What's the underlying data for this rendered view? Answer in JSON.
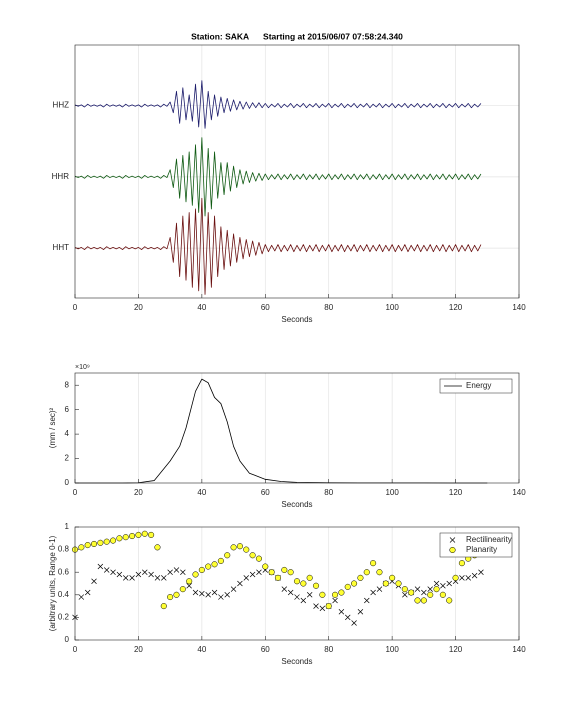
{
  "chart_data": [
    {
      "type": "line",
      "title": "Station: SAKA      Starting at 2015/06/07 07:58:24.340",
      "xlabel": "Seconds",
      "x": [
        0,
        1,
        2,
        3,
        4,
        5,
        6,
        7,
        8,
        9,
        10,
        11,
        12,
        13,
        14,
        15,
        16,
        17,
        18,
        19,
        20,
        21,
        22,
        23,
        24,
        25,
        26,
        27,
        28,
        29,
        30,
        31,
        32,
        33,
        34,
        35,
        36,
        37,
        38,
        39,
        40,
        41,
        42,
        43,
        44,
        45,
        46,
        47,
        48,
        49,
        50,
        51,
        52,
        53,
        54,
        55,
        56,
        57,
        58,
        59,
        60,
        61,
        62,
        63,
        64,
        65,
        66,
        67,
        68,
        69,
        70,
        71,
        72,
        73,
        74,
        75,
        76,
        77,
        78,
        79,
        80,
        81,
        82,
        83,
        84,
        85,
        86,
        87,
        88,
        89,
        90,
        91,
        92,
        93,
        94,
        95,
        96,
        97,
        98,
        99,
        100,
        101,
        102,
        103,
        104,
        105,
        106,
        107,
        108,
        109,
        110,
        111,
        112,
        113,
        114,
        115,
        116,
        117,
        118,
        119,
        120,
        121,
        122,
        123,
        124,
        125,
        126,
        127,
        128
      ],
      "series": [
        {
          "color": "#1c1c6b",
          "values": [
            3.01,
            2.99,
            3.01,
            2.98,
            3.02,
            2.99,
            3.01,
            2.99,
            3.01,
            2.98,
            3.02,
            2.99,
            3.01,
            2.99,
            3.01,
            2.98,
            3.02,
            2.99,
            3.01,
            2.99,
            3.01,
            2.98,
            3.02,
            2.99,
            3.01,
            2.99,
            3.01,
            2.98,
            3.02,
            2.99,
            3.05,
            2.9,
            3.2,
            2.75,
            3.25,
            2.8,
            3.15,
            2.78,
            3.3,
            2.7,
            3.35,
            2.68,
            3.2,
            2.8,
            3.15,
            2.85,
            3.12,
            2.9,
            3.1,
            2.92,
            3.08,
            2.94,
            3.06,
            2.95,
            3.05,
            2.96,
            3.04,
            2.97,
            3.04,
            2.97,
            3.03,
            2.97,
            3.02,
            2.98,
            3.03,
            2.97,
            3.02,
            2.98,
            3.03,
            2.97,
            3.02,
            2.98,
            3.03,
            2.97,
            3.02,
            2.98,
            3.03,
            2.97,
            3.02,
            2.98,
            3.03,
            2.97,
            3.02,
            2.98,
            3.03,
            2.97,
            3.02,
            2.98,
            3.03,
            2.97,
            3.02,
            2.98,
            3.03,
            2.97,
            3.02,
            2.98,
            3.03,
            2.97,
            3.02,
            2.98,
            3.03,
            2.97,
            3.02,
            2.98,
            3.03,
            2.97,
            3.02,
            2.98,
            3.03,
            2.97,
            3.02,
            2.98,
            3.03,
            2.97,
            3.02,
            2.98,
            3.03,
            2.97,
            3.02,
            2.98,
            3.03,
            2.97,
            3.02,
            2.98,
            3.03,
            2.97,
            3.02,
            2.98,
            3.03
          ]
        },
        {
          "color": "#0f5a12",
          "values": [
            2.01,
            1.99,
            2.01,
            1.98,
            2.02,
            1.99,
            2.01,
            1.99,
            2.01,
            1.98,
            2.02,
            1.99,
            2.01,
            1.99,
            2.01,
            1.98,
            2.02,
            1.99,
            2.01,
            1.99,
            2.01,
            1.98,
            2.02,
            1.99,
            2.01,
            1.99,
            2.01,
            1.98,
            2.02,
            1.99,
            2.1,
            1.85,
            2.25,
            1.7,
            2.3,
            1.65,
            2.35,
            1.6,
            2.45,
            1.5,
            2.55,
            1.45,
            2.4,
            1.55,
            2.35,
            1.7,
            2.2,
            1.75,
            2.2,
            1.8,
            2.15,
            1.85,
            2.1,
            1.9,
            2.08,
            1.92,
            2.06,
            1.94,
            2.05,
            1.95,
            2.04,
            1.96,
            2.03,
            1.97,
            2.04,
            1.96,
            2.03,
            1.97,
            2.04,
            1.96,
            2.03,
            1.97,
            2.04,
            1.96,
            2.03,
            1.97,
            2.04,
            1.96,
            2.03,
            1.97,
            2.04,
            1.96,
            2.03,
            1.97,
            2.04,
            1.96,
            2.03,
            1.97,
            2.04,
            1.96,
            2.03,
            1.97,
            2.04,
            1.96,
            2.03,
            1.97,
            2.04,
            1.96,
            2.03,
            1.97,
            2.04,
            1.96,
            2.03,
            1.97,
            2.04,
            1.96,
            2.03,
            1.97,
            2.04,
            1.96,
            2.03,
            1.97,
            2.04,
            1.96,
            2.03,
            1.97,
            2.04,
            1.96,
            2.03,
            1.97,
            2.04,
            1.96,
            2.03,
            1.97,
            2.04,
            1.96,
            2.03,
            1.97,
            2.04
          ]
        },
        {
          "color": "#6a1010",
          "values": [
            1.01,
            0.99,
            1.01,
            0.98,
            1.02,
            0.99,
            1.01,
            0.99,
            1.01,
            0.98,
            1.02,
            0.99,
            1.01,
            0.99,
            1.01,
            0.98,
            1.02,
            0.99,
            1.01,
            0.99,
            1.01,
            0.98,
            1.02,
            0.99,
            1.01,
            0.99,
            1.01,
            0.98,
            1.02,
            0.99,
            1.15,
            0.8,
            1.35,
            0.6,
            1.45,
            0.55,
            1.5,
            0.45,
            1.55,
            0.4,
            1.7,
            0.35,
            1.5,
            0.45,
            1.45,
            0.6,
            1.3,
            0.7,
            1.25,
            0.75,
            1.2,
            0.8,
            1.15,
            0.85,
            1.12,
            0.88,
            1.1,
            0.9,
            1.08,
            0.92,
            1.05,
            0.95,
            1.04,
            0.96,
            1.05,
            0.95,
            1.04,
            0.96,
            1.05,
            0.95,
            1.04,
            0.96,
            1.05,
            0.95,
            1.04,
            0.96,
            1.05,
            0.95,
            1.04,
            0.96,
            1.05,
            0.95,
            1.04,
            0.96,
            1.05,
            0.95,
            1.04,
            0.96,
            1.05,
            0.95,
            1.04,
            0.96,
            1.05,
            0.95,
            1.04,
            0.96,
            1.05,
            0.95,
            1.04,
            0.96,
            1.05,
            0.95,
            1.04,
            0.96,
            1.05,
            0.95,
            1.04,
            0.96,
            1.05,
            0.95,
            1.04,
            0.96,
            1.05,
            0.95,
            1.04,
            0.96,
            1.05,
            0.95,
            1.04,
            0.96,
            1.05,
            0.95,
            1.04,
            0.96,
            1.05,
            0.95,
            1.04,
            0.96,
            1.05
          ]
        }
      ],
      "xlim": [
        0,
        140
      ],
      "xticks": [
        0,
        20,
        40,
        60,
        80,
        100,
        120,
        140
      ],
      "ylim": [
        0.3,
        3.85
      ],
      "yticks": [
        {
          "value": 1,
          "label": "HHT"
        },
        {
          "value": 2,
          "label": "HHR"
        },
        {
          "value": 3,
          "label": "HHZ"
        }
      ],
      "grid": "both"
    },
    {
      "type": "line",
      "xlabel": "Seconds",
      "ylabel": "(mm / sec)²",
      "y_multiplier": "×10⁹",
      "x": [
        0,
        5,
        10,
        15,
        20,
        25,
        30,
        33,
        35,
        38,
        40,
        42,
        44,
        46,
        48,
        50,
        52,
        55,
        60,
        65,
        70,
        80,
        90,
        100,
        110,
        120,
        130
      ],
      "series": [
        {
          "name": "Energy",
          "color": "#000000",
          "values": [
            0,
            0,
            0,
            0,
            0.02,
            0.2,
            1.8,
            3,
            4.5,
            7.5,
            8.5,
            8.2,
            7,
            6.5,
            5,
            3,
            1.8,
            0.8,
            0.3,
            0.12,
            0.05,
            0.02,
            0.01,
            0.01,
            0.01,
            0,
            0
          ]
        }
      ],
      "xlim": [
        0,
        140
      ],
      "xticks": [
        0,
        20,
        40,
        60,
        80,
        100,
        120,
        140
      ],
      "ylim": [
        0,
        9
      ],
      "yticks": [
        0,
        2,
        4,
        6,
        8
      ],
      "grid": "x"
    },
    {
      "type": "scatter",
      "xlabel": "Seconds",
      "ylabel": "(arbitrary units, Range 0-1)",
      "x": [
        0,
        2,
        4,
        6,
        8,
        10,
        12,
        14,
        16,
        18,
        20,
        22,
        24,
        26,
        28,
        30,
        32,
        34,
        36,
        38,
        40,
        42,
        44,
        46,
        48,
        50,
        52,
        54,
        56,
        58,
        60,
        62,
        64,
        66,
        68,
        70,
        72,
        74,
        76,
        78,
        80,
        82,
        84,
        86,
        88,
        90,
        92,
        94,
        96,
        98,
        100,
        102,
        104,
        106,
        108,
        110,
        112,
        114,
        116,
        118,
        120,
        122,
        124,
        126,
        128
      ],
      "series": [
        {
          "name": "Rectilinearity",
          "marker": "x",
          "color": "#000000",
          "values": [
            0.2,
            0.38,
            0.42,
            0.52,
            0.65,
            0.62,
            0.6,
            0.58,
            0.55,
            0.55,
            0.58,
            0.6,
            0.58,
            0.55,
            0.55,
            0.6,
            0.62,
            0.6,
            0.48,
            0.42,
            0.41,
            0.4,
            0.42,
            0.38,
            0.4,
            0.45,
            0.5,
            0.55,
            0.58,
            0.6,
            0.62,
            0.6,
            0.55,
            0.45,
            0.42,
            0.38,
            0.35,
            0.4,
            0.3,
            0.28,
            0.3,
            0.35,
            0.25,
            0.2,
            0.15,
            0.25,
            0.35,
            0.42,
            0.45,
            0.5,
            0.52,
            0.48,
            0.4,
            0.42,
            0.45,
            0.42,
            0.45,
            0.5,
            0.48,
            0.5,
            0.52,
            0.55,
            0.55,
            0.57,
            0.6
          ]
        },
        {
          "name": "Planarity",
          "marker": "o",
          "color": "#ffff33",
          "values": [
            0.8,
            0.82,
            0.84,
            0.85,
            0.86,
            0.87,
            0.88,
            0.9,
            0.91,
            0.92,
            0.93,
            0.94,
            0.93,
            0.82,
            0.3,
            0.38,
            0.4,
            0.45,
            0.52,
            0.58,
            0.62,
            0.65,
            0.67,
            0.7,
            0.75,
            0.82,
            0.83,
            0.8,
            0.75,
            0.72,
            0.65,
            0.6,
            0.55,
            0.62,
            0.6,
            0.52,
            0.5,
            0.55,
            0.48,
            0.4,
            0.3,
            0.4,
            0.42,
            0.47,
            0.5,
            0.55,
            0.6,
            0.68,
            0.6,
            0.5,
            0.55,
            0.5,
            0.45,
            0.42,
            0.35,
            0.35,
            0.4,
            0.45,
            0.4,
            0.35,
            0.55,
            0.68,
            0.72,
            0.75,
            0.78
          ]
        }
      ],
      "xlim": [
        0,
        140
      ],
      "xticks": [
        0,
        20,
        40,
        60,
        80,
        100,
        120,
        140
      ],
      "ylim": [
        0,
        1
      ],
      "yticks": [
        0,
        0.2,
        0.4,
        0.6,
        0.8,
        1
      ],
      "grid": "x"
    }
  ]
}
